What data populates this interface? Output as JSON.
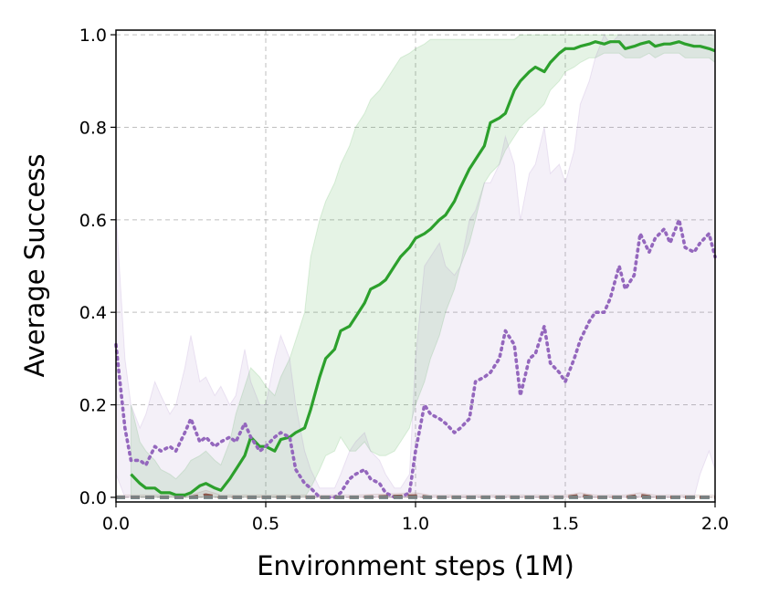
{
  "chart_data": {
    "type": "line",
    "title": "",
    "xlabel": "Environment steps (1M)",
    "ylabel": "Average Success",
    "xlim": [
      0.0,
      2.0
    ],
    "ylim": [
      -0.01,
      1.01
    ],
    "xticks": [
      0.0,
      0.5,
      1.0,
      1.5,
      2.0
    ],
    "xtick_labels": [
      "0.0",
      "0.5",
      "1.0",
      "1.5",
      "2.0"
    ],
    "yticks": [
      0.0,
      0.2,
      0.4,
      0.6,
      0.8,
      1.0
    ],
    "ytick_labels": [
      "0.0",
      "0.2",
      "0.4",
      "0.6",
      "0.8",
      "1.0"
    ],
    "grid": true,
    "legend": "none",
    "series": [
      {
        "color": "#2ca02c",
        "style": "solid",
        "x": [
          0.05,
          0.08,
          0.1,
          0.13,
          0.15,
          0.18,
          0.2,
          0.23,
          0.25,
          0.28,
          0.3,
          0.33,
          0.35,
          0.38,
          0.4,
          0.43,
          0.45,
          0.48,
          0.5,
          0.53,
          0.55,
          0.58,
          0.6,
          0.63,
          0.65,
          0.68,
          0.7,
          0.73,
          0.75,
          0.78,
          0.8,
          0.83,
          0.85,
          0.88,
          0.9,
          0.93,
          0.95,
          0.98,
          1.0,
          1.03,
          1.05,
          1.08,
          1.1,
          1.13,
          1.15,
          1.18,
          1.2,
          1.23,
          1.25,
          1.28,
          1.3,
          1.33,
          1.35,
          1.38,
          1.4,
          1.43,
          1.45,
          1.48,
          1.5,
          1.53,
          1.55,
          1.58,
          1.6,
          1.63,
          1.65,
          1.68,
          1.7,
          1.73,
          1.75,
          1.78,
          1.8,
          1.83,
          1.85,
          1.88,
          1.9,
          1.93,
          1.95,
          1.98,
          2.0
        ],
        "values": [
          0.05,
          0.03,
          0.02,
          0.02,
          0.01,
          0.01,
          0.005,
          0.005,
          0.01,
          0.025,
          0.03,
          0.02,
          0.015,
          0.04,
          0.06,
          0.09,
          0.13,
          0.11,
          0.11,
          0.1,
          0.125,
          0.13,
          0.14,
          0.15,
          0.19,
          0.26,
          0.3,
          0.32,
          0.36,
          0.37,
          0.39,
          0.42,
          0.45,
          0.46,
          0.47,
          0.5,
          0.52,
          0.54,
          0.56,
          0.57,
          0.58,
          0.6,
          0.61,
          0.64,
          0.67,
          0.71,
          0.73,
          0.76,
          0.81,
          0.82,
          0.83,
          0.88,
          0.9,
          0.92,
          0.93,
          0.92,
          0.94,
          0.96,
          0.97,
          0.97,
          0.975,
          0.98,
          0.985,
          0.98,
          0.985,
          0.985,
          0.97,
          0.975,
          0.98,
          0.985,
          0.975,
          0.98,
          0.98,
          0.985,
          0.98,
          0.975,
          0.975,
          0.97,
          0.965
        ],
        "band_low": [
          0.0,
          0.0,
          0.0,
          0.0,
          0.0,
          0.0,
          0.0,
          0.0,
          0.0,
          0.0,
          0.0,
          0.0,
          0.0,
          0.0,
          0.0,
          0.0,
          0.0,
          0.0,
          0.0,
          0.0,
          0.0,
          0.0,
          0.0,
          0.0,
          0.02,
          0.06,
          0.09,
          0.1,
          0.13,
          0.1,
          0.1,
          0.12,
          0.1,
          0.09,
          0.09,
          0.1,
          0.12,
          0.15,
          0.2,
          0.25,
          0.3,
          0.35,
          0.4,
          0.45,
          0.5,
          0.55,
          0.6,
          0.68,
          0.7,
          0.72,
          0.75,
          0.78,
          0.8,
          0.82,
          0.83,
          0.85,
          0.88,
          0.9,
          0.92,
          0.93,
          0.94,
          0.95,
          0.95,
          0.96,
          0.96,
          0.96,
          0.95,
          0.95,
          0.95,
          0.96,
          0.95,
          0.96,
          0.96,
          0.96,
          0.95,
          0.95,
          0.95,
          0.95,
          0.94
        ],
        "band_high": [
          0.2,
          0.12,
          0.1,
          0.08,
          0.06,
          0.05,
          0.04,
          0.06,
          0.08,
          0.09,
          0.1,
          0.08,
          0.07,
          0.12,
          0.18,
          0.24,
          0.28,
          0.26,
          0.24,
          0.22,
          0.26,
          0.3,
          0.34,
          0.4,
          0.52,
          0.6,
          0.64,
          0.68,
          0.72,
          0.76,
          0.8,
          0.83,
          0.86,
          0.88,
          0.9,
          0.93,
          0.95,
          0.96,
          0.97,
          0.98,
          0.99,
          0.99,
          0.99,
          0.99,
          0.99,
          0.99,
          0.99,
          0.99,
          0.99,
          0.99,
          0.99,
          0.99,
          1.0,
          1.0,
          1.0,
          1.0,
          1.0,
          1.0,
          1.0,
          1.0,
          1.0,
          1.0,
          1.0,
          1.0,
          1.0,
          1.0,
          1.0,
          1.0,
          1.0,
          1.0,
          1.0,
          1.0,
          1.0,
          1.0,
          1.0,
          1.0,
          1.0,
          1.0,
          1.0
        ]
      },
      {
        "color": "#9467bd",
        "style": "dotted",
        "x": [
          0.0,
          0.03,
          0.05,
          0.08,
          0.1,
          0.13,
          0.15,
          0.18,
          0.2,
          0.23,
          0.25,
          0.28,
          0.3,
          0.33,
          0.35,
          0.38,
          0.4,
          0.43,
          0.45,
          0.48,
          0.5,
          0.53,
          0.55,
          0.58,
          0.6,
          0.63,
          0.65,
          0.68,
          0.7,
          0.73,
          0.75,
          0.78,
          0.8,
          0.83,
          0.85,
          0.88,
          0.9,
          0.93,
          0.95,
          0.98,
          1.0,
          1.03,
          1.05,
          1.08,
          1.1,
          1.13,
          1.15,
          1.18,
          1.2,
          1.23,
          1.25,
          1.28,
          1.3,
          1.33,
          1.35,
          1.38,
          1.4,
          1.43,
          1.45,
          1.48,
          1.5,
          1.53,
          1.55,
          1.58,
          1.6,
          1.63,
          1.65,
          1.68,
          1.7,
          1.73,
          1.75,
          1.78,
          1.8,
          1.83,
          1.85,
          1.88,
          1.9,
          1.93,
          1.95,
          1.98,
          2.0
        ],
        "values": [
          0.33,
          0.15,
          0.08,
          0.08,
          0.07,
          0.11,
          0.1,
          0.11,
          0.1,
          0.14,
          0.17,
          0.12,
          0.13,
          0.11,
          0.12,
          0.13,
          0.12,
          0.16,
          0.13,
          0.1,
          0.11,
          0.13,
          0.14,
          0.13,
          0.06,
          0.03,
          0.02,
          0.0,
          0.0,
          0.0,
          0.01,
          0.04,
          0.05,
          0.06,
          0.04,
          0.03,
          0.01,
          0.0,
          0.0,
          0.01,
          0.1,
          0.2,
          0.18,
          0.17,
          0.16,
          0.14,
          0.15,
          0.17,
          0.25,
          0.26,
          0.27,
          0.3,
          0.36,
          0.33,
          0.22,
          0.3,
          0.31,
          0.37,
          0.29,
          0.27,
          0.25,
          0.3,
          0.34,
          0.38,
          0.4,
          0.4,
          0.43,
          0.5,
          0.45,
          0.48,
          0.57,
          0.53,
          0.56,
          0.58,
          0.55,
          0.6,
          0.54,
          0.53,
          0.55,
          0.57,
          0.52
        ],
        "band_low": [
          0.05,
          0.0,
          0.0,
          0.0,
          0.0,
          0.0,
          0.0,
          0.0,
          0.0,
          0.0,
          0.0,
          0.0,
          0.0,
          0.0,
          0.0,
          0.0,
          0.0,
          0.0,
          0.0,
          0.0,
          0.0,
          0.0,
          0.0,
          0.0,
          0.0,
          0.0,
          0.0,
          0.0,
          0.0,
          0.0,
          0.0,
          0.0,
          0.0,
          0.0,
          0.0,
          0.0,
          0.0,
          0.0,
          0.0,
          0.0,
          0.0,
          0.0,
          0.0,
          0.0,
          0.0,
          0.0,
          0.0,
          0.0,
          0.0,
          0.0,
          0.0,
          0.0,
          0.0,
          0.0,
          0.0,
          0.0,
          0.0,
          0.0,
          0.0,
          0.0,
          0.0,
          0.0,
          0.0,
          0.0,
          0.0,
          0.0,
          0.0,
          0.0,
          0.0,
          0.0,
          0.0,
          0.0,
          0.0,
          0.0,
          0.0,
          0.0,
          0.0,
          0.0,
          0.05,
          0.1,
          0.06
        ],
        "band_high": [
          0.62,
          0.3,
          0.2,
          0.15,
          0.18,
          0.25,
          0.22,
          0.18,
          0.2,
          0.28,
          0.35,
          0.25,
          0.26,
          0.22,
          0.24,
          0.2,
          0.22,
          0.32,
          0.25,
          0.2,
          0.2,
          0.3,
          0.35,
          0.3,
          0.2,
          0.1,
          0.06,
          0.02,
          0.02,
          0.02,
          0.05,
          0.1,
          0.12,
          0.14,
          0.1,
          0.08,
          0.05,
          0.02,
          0.02,
          0.05,
          0.3,
          0.5,
          0.52,
          0.55,
          0.5,
          0.48,
          0.5,
          0.6,
          0.62,
          0.68,
          0.68,
          0.72,
          0.78,
          0.72,
          0.6,
          0.7,
          0.72,
          0.8,
          0.7,
          0.72,
          0.68,
          0.75,
          0.85,
          0.9,
          0.95,
          1.0,
          0.98,
          1.0,
          1.0,
          1.0,
          1.0,
          1.0,
          1.0,
          1.0,
          1.0,
          1.0,
          1.0,
          1.0,
          1.0,
          1.0,
          1.0
        ]
      },
      {
        "color": "#8c564b",
        "style": "dashed",
        "x": [
          0.0,
          0.25,
          0.3,
          0.35,
          0.4,
          0.8,
          1.0,
          1.05,
          1.5,
          1.55,
          1.6,
          1.7,
          1.75,
          1.8,
          2.0
        ],
        "values": [
          0.0,
          0.0,
          0.005,
          0.0,
          0.0,
          0.0,
          0.003,
          0.0,
          0.0,
          0.004,
          0.0,
          0.0,
          0.004,
          0.0,
          0.0
        ],
        "band_low": [
          0,
          0,
          0,
          0,
          0,
          0,
          0,
          0,
          0,
          0,
          0,
          0,
          0,
          0,
          0
        ],
        "band_high": [
          0.005,
          0.005,
          0.015,
          0.005,
          0.005,
          0.005,
          0.01,
          0.005,
          0.005,
          0.01,
          0.005,
          0.005,
          0.01,
          0.005,
          0.005
        ]
      },
      {
        "color": "#17becf",
        "style": "dashed",
        "x": [
          0.0,
          2.0
        ],
        "values": [
          0.0,
          0.0
        ]
      },
      {
        "color": "#7f7f7f",
        "style": "dashed",
        "x": [
          0.0,
          2.0
        ],
        "values": [
          0.0,
          0.0
        ]
      }
    ]
  }
}
